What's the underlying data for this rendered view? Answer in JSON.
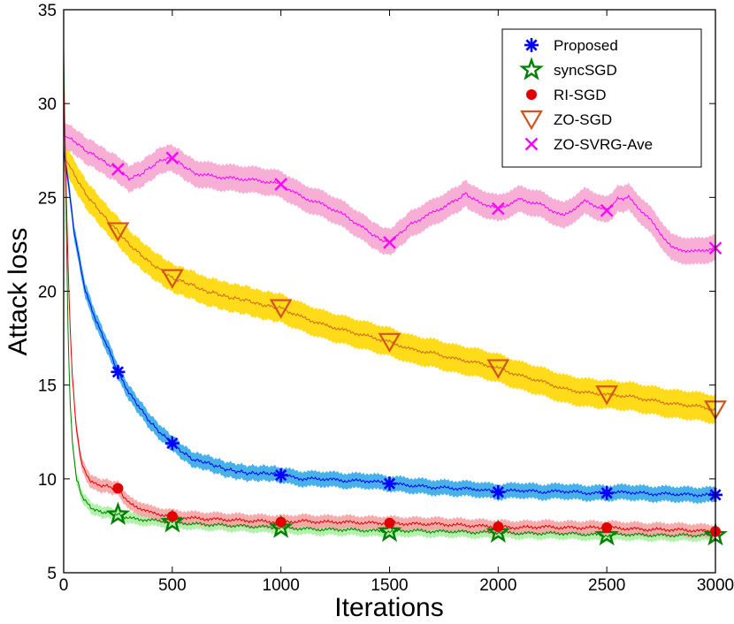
{
  "chart_data": {
    "type": "line",
    "title": "",
    "xlabel": "Iterations",
    "ylabel": "Attack loss",
    "xlim": [
      0,
      3000
    ],
    "ylim": [
      5,
      35
    ],
    "xticks": [
      "0",
      "500",
      "1000",
      "1500",
      "2000",
      "2500",
      "3000"
    ],
    "yticks": [
      "5",
      "10",
      "15",
      "20",
      "25",
      "30",
      "35"
    ],
    "legend_position": "top-right",
    "series": [
      {
        "name": "Proposed",
        "line_color": "#0000ff",
        "band_color": "#35a8e8",
        "marker": "asterisk",
        "marker_color": "#0000ff",
        "band_halfwidth": 0.4,
        "x": [
          0,
          25,
          50,
          75,
          100,
          150,
          200,
          250,
          300,
          350,
          400,
          450,
          500,
          550,
          600,
          650,
          700,
          750,
          800,
          850,
          900,
          950,
          1000,
          1100,
          1200,
          1300,
          1400,
          1500,
          1600,
          1700,
          1800,
          1900,
          2000,
          2100,
          2200,
          2300,
          2400,
          2500,
          2600,
          2700,
          2800,
          2900,
          3000
        ],
        "y": [
          27.5,
          25.5,
          23.0,
          21.5,
          20.0,
          18.4,
          17.1,
          15.7,
          14.6,
          13.8,
          13.0,
          12.4,
          11.9,
          11.4,
          11.0,
          10.9,
          10.7,
          10.5,
          10.4,
          10.3,
          10.3,
          10.3,
          10.2,
          10.0,
          10.0,
          9.9,
          9.9,
          9.75,
          9.65,
          9.55,
          9.5,
          9.45,
          9.3,
          9.4,
          9.3,
          9.35,
          9.25,
          9.25,
          9.3,
          9.2,
          9.2,
          9.15,
          9.15
        ],
        "marker_x": [
          250,
          500,
          1000,
          1500,
          2000,
          2500,
          3000
        ],
        "marker_y": [
          15.7,
          11.9,
          10.2,
          9.75,
          9.3,
          9.25,
          9.15
        ]
      },
      {
        "name": "syncSGD",
        "line_color": "#008000",
        "band_color": "#a8f0a0",
        "marker": "star",
        "marker_color": "#008000",
        "band_halfwidth": 0.3,
        "x": [
          0,
          10,
          20,
          30,
          40,
          50,
          60,
          80,
          100,
          125,
          150,
          200,
          250,
          300,
          400,
          500,
          600,
          700,
          800,
          900,
          1000,
          1100,
          1200,
          1300,
          1400,
          1500,
          1600,
          1700,
          1800,
          1900,
          2000,
          2100,
          2200,
          2300,
          2400,
          2500,
          2600,
          2700,
          2800,
          2900,
          3000
        ],
        "y": [
          33.0,
          25.0,
          18.0,
          14.0,
          12.0,
          10.8,
          10.0,
          9.2,
          8.8,
          8.5,
          8.3,
          8.2,
          8.1,
          7.9,
          7.8,
          7.7,
          7.6,
          7.55,
          7.5,
          7.45,
          7.4,
          7.35,
          7.3,
          7.3,
          7.25,
          7.2,
          7.25,
          7.2,
          7.2,
          7.15,
          7.15,
          7.1,
          7.1,
          7.1,
          7.05,
          7.0,
          7.05,
          7.0,
          7.0,
          7.0,
          7.0
        ],
        "marker_x": [
          250,
          500,
          1000,
          1500,
          2000,
          2500,
          3000
        ],
        "marker_y": [
          8.1,
          7.7,
          7.4,
          7.2,
          7.15,
          7.0,
          7.0
        ]
      },
      {
        "name": "RI-SGD",
        "line_color": "#e00000",
        "band_color": "#f5a3a3",
        "marker": "circle",
        "marker_color": "#e00000",
        "band_halfwidth": 0.35,
        "x": [
          0,
          10,
          20,
          30,
          40,
          50,
          60,
          80,
          100,
          125,
          150,
          200,
          250,
          300,
          400,
          500,
          600,
          700,
          800,
          900,
          1000,
          1100,
          1200,
          1300,
          1400,
          1500,
          1600,
          1700,
          1800,
          1900,
          2000,
          2100,
          2200,
          2300,
          2400,
          2500,
          2600,
          2700,
          2800,
          2900,
          3000
        ],
        "y": [
          31.0,
          26.0,
          21.5,
          18.0,
          15.5,
          13.8,
          12.5,
          11.0,
          10.3,
          9.9,
          9.7,
          9.6,
          9.5,
          8.7,
          8.2,
          8.0,
          7.9,
          7.85,
          7.8,
          7.75,
          7.7,
          7.75,
          7.7,
          7.7,
          7.65,
          7.65,
          7.6,
          7.6,
          7.55,
          7.5,
          7.45,
          7.4,
          7.45,
          7.4,
          7.4,
          7.4,
          7.35,
          7.3,
          7.3,
          7.25,
          7.2
        ],
        "marker_x": [
          250,
          500,
          1000,
          1500,
          2000,
          2500,
          3000
        ],
        "marker_y": [
          9.5,
          8.0,
          7.7,
          7.65,
          7.45,
          7.4,
          7.2
        ]
      },
      {
        "name": "ZO-SGD",
        "line_color": "#d2691e",
        "band_color": "#ffd700",
        "marker": "triangle-down",
        "marker_color": "#d2541e",
        "band_halfwidth": 0.75,
        "x": [
          0,
          50,
          100,
          150,
          200,
          250,
          300,
          350,
          400,
          450,
          500,
          550,
          600,
          650,
          700,
          750,
          800,
          850,
          900,
          950,
          1000,
          1100,
          1200,
          1300,
          1400,
          1500,
          1600,
          1700,
          1800,
          1900,
          2000,
          2100,
          2200,
          2300,
          2400,
          2500,
          2600,
          2700,
          2800,
          2900,
          3000
        ],
        "y": [
          27.2,
          26.2,
          25.2,
          24.5,
          23.8,
          23.2,
          22.5,
          22.0,
          21.5,
          21.1,
          20.7,
          20.5,
          20.3,
          20.0,
          19.9,
          19.7,
          19.6,
          19.5,
          19.3,
          19.2,
          19.1,
          18.6,
          18.2,
          17.9,
          17.6,
          17.3,
          16.9,
          16.7,
          16.4,
          16.2,
          15.9,
          15.5,
          15.2,
          14.8,
          14.6,
          14.5,
          14.4,
          14.2,
          14.0,
          13.9,
          13.7
        ],
        "marker_x": [
          250,
          500,
          1000,
          1500,
          2000,
          2500,
          3000
        ],
        "marker_y": [
          23.2,
          20.7,
          19.1,
          17.3,
          15.9,
          14.5,
          13.7
        ]
      },
      {
        "name": "ZO-SVRG-Ave",
        "line_color": "#ff00ff",
        "band_color": "#f7a6d0",
        "marker": "x",
        "marker_color": "#ff00ff",
        "band_halfwidth": 0.7,
        "x": [
          0,
          50,
          100,
          150,
          200,
          250,
          300,
          350,
          400,
          450,
          500,
          550,
          600,
          700,
          800,
          900,
          1000,
          1100,
          1200,
          1300,
          1400,
          1450,
          1500,
          1550,
          1600,
          1700,
          1800,
          1850,
          1900,
          2000,
          2100,
          2200,
          2300,
          2400,
          2500,
          2550,
          2600,
          2700,
          2800,
          2900,
          3000
        ],
        "y": [
          28.3,
          28.0,
          27.5,
          27.2,
          26.8,
          26.5,
          26.0,
          26.2,
          26.6,
          27.0,
          27.1,
          26.7,
          26.3,
          26.1,
          26.0,
          25.9,
          25.7,
          25.0,
          24.6,
          24.0,
          23.2,
          22.8,
          22.6,
          23.1,
          23.6,
          24.2,
          24.8,
          25.2,
          24.8,
          24.4,
          24.9,
          24.6,
          24.0,
          24.8,
          24.3,
          24.9,
          25.0,
          23.8,
          22.3,
          22.1,
          22.3
        ],
        "marker_x": [
          250,
          500,
          1000,
          1500,
          2000,
          2500,
          3000
        ],
        "marker_y": [
          26.5,
          27.1,
          25.7,
          22.6,
          24.4,
          24.3,
          22.3
        ]
      }
    ]
  }
}
